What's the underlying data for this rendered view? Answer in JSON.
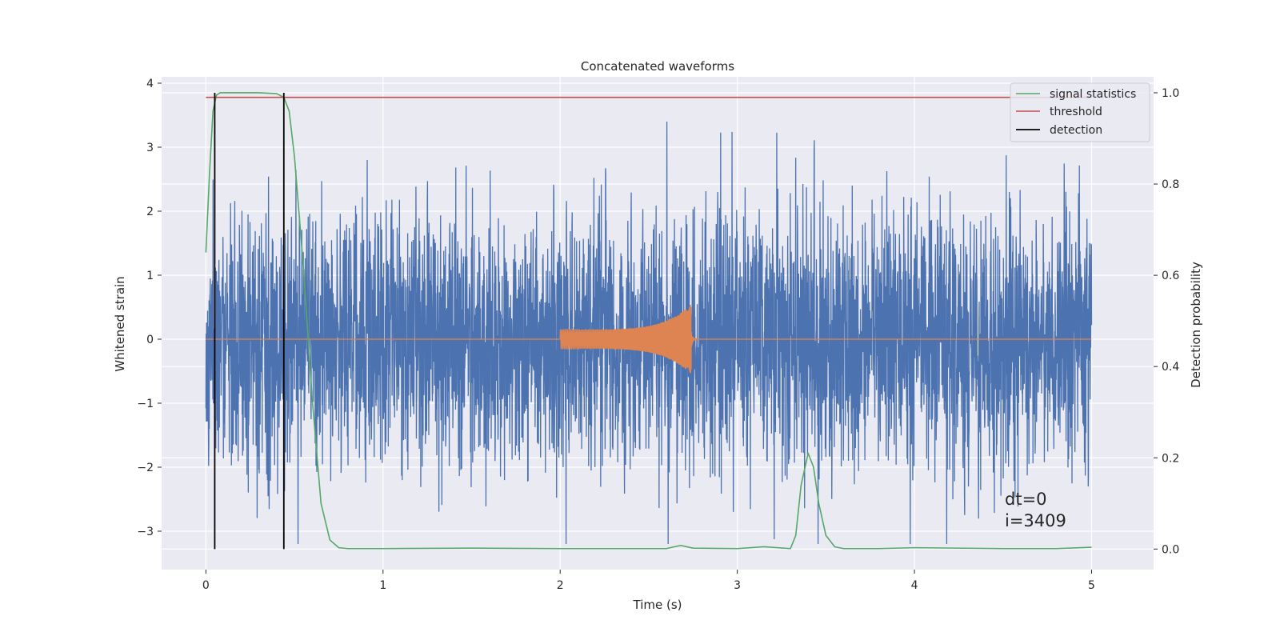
{
  "chart_data": {
    "type": "line",
    "title": "Concatenated waveforms",
    "xlabel": "Time (s)",
    "ylabel": "Whitened strain",
    "y2label": "Detection probability",
    "xlim": [
      -0.25,
      5.35
    ],
    "ylim": [
      -3.6,
      4.1
    ],
    "y2lim": [
      -0.045,
      1.035
    ],
    "xticks": [
      0,
      1,
      2,
      3,
      4,
      5
    ],
    "xtick_labels": [
      "0",
      "1",
      "2",
      "3",
      "4",
      "5"
    ],
    "yticks": [
      -3,
      -2,
      -1,
      0,
      1,
      2,
      3,
      4
    ],
    "ytick_labels": [
      "−3",
      "−2",
      "−1",
      "0",
      "1",
      "2",
      "3",
      "4"
    ],
    "y2ticks": [
      0.0,
      0.2,
      0.4,
      0.6,
      0.8,
      1.0
    ],
    "y2tick_labels": [
      "0.0",
      "0.2",
      "0.4",
      "0.6",
      "0.8",
      "1.0"
    ],
    "grid": true,
    "legend_position": "top-right",
    "series": [
      {
        "name": "",
        "axis": "left",
        "color": "#4c72b0",
        "kind": "noise",
        "x_range": [
          0,
          5
        ],
        "typical_amplitude": 1.0,
        "peak_range": [
          -3.2,
          3.4
        ]
      },
      {
        "name": "",
        "axis": "left",
        "color": "#dd8452",
        "kind": "chirp",
        "x_start": 2.0,
        "x_merger": 2.74,
        "start_amplitude": 0.15,
        "peak_amplitude": 0.55,
        "baseline": 0
      },
      {
        "name": "signal statistics",
        "axis": "right",
        "color": "#55a868",
        "x": [
          0,
          0.02,
          0.04,
          0.06,
          0.08,
          0.1,
          0.2,
          0.3,
          0.4,
          0.44,
          0.47,
          0.5,
          0.55,
          0.6,
          0.65,
          0.7,
          0.75,
          0.8,
          1.0,
          1.5,
          2.0,
          2.5,
          2.6,
          2.68,
          2.75,
          3.0,
          3.15,
          3.3,
          3.33,
          3.36,
          3.4,
          3.43,
          3.46,
          3.5,
          3.55,
          3.6,
          3.8,
          4.0,
          4.5,
          4.8,
          5.0
        ],
        "values": [
          0.65,
          0.82,
          0.96,
          0.995,
          1.0,
          1.0,
          1.0,
          1.0,
          0.998,
          0.99,
          0.96,
          0.86,
          0.62,
          0.33,
          0.1,
          0.02,
          0.003,
          0.001,
          0.001,
          0.002,
          0.001,
          0.001,
          0.001,
          0.008,
          0.002,
          0.001,
          0.005,
          0.001,
          0.03,
          0.14,
          0.21,
          0.18,
          0.1,
          0.03,
          0.005,
          0.001,
          0.001,
          0.003,
          0.001,
          0.001,
          0.004
        ]
      },
      {
        "name": "threshold",
        "axis": "right",
        "color": "#c44e52",
        "x": [
          0,
          5
        ],
        "values": [
          0.99,
          0.99
        ]
      },
      {
        "name": "detection",
        "axis": "right",
        "color": "#000000",
        "kind": "vlines",
        "x": [
          0.05,
          0.44
        ],
        "ymin": 0.0,
        "ymax": 1.0
      }
    ],
    "annotation": {
      "lines": [
        "dt=0",
        "i=3409"
      ],
      "x": 4.5,
      "y": -2.6
    }
  }
}
